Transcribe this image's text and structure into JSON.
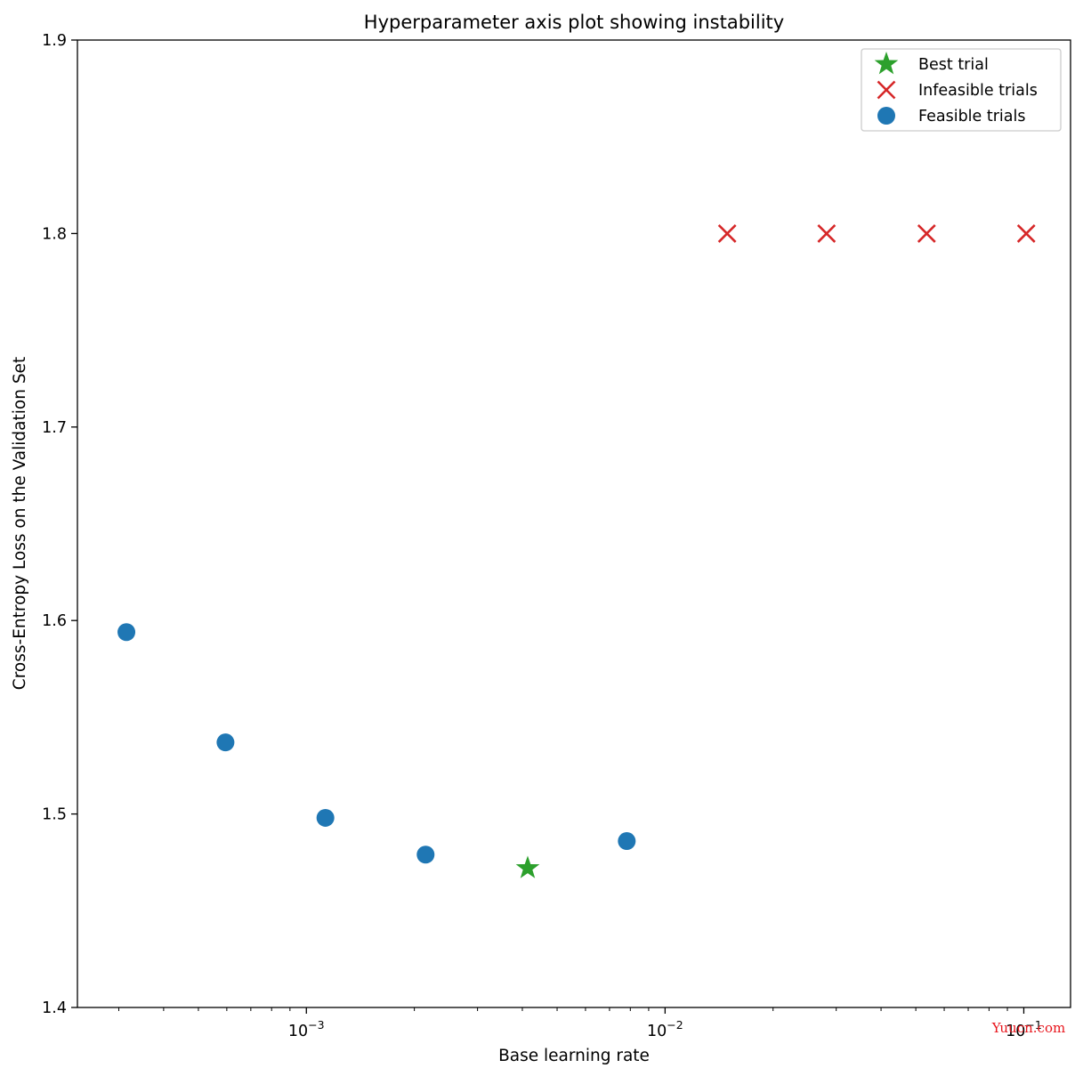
{
  "chart_data": {
    "type": "scatter",
    "title": "Hyperparameter axis plot showing instability",
    "xlabel": "Base learning rate",
    "ylabel": "Cross-Entropy Loss on the Validation Set",
    "xscale": "log",
    "xlim": [
      0.00023,
      0.135
    ],
    "ylim": [
      1.4,
      1.9
    ],
    "yticks": [
      "1.4",
      "1.5",
      "1.6",
      "1.7",
      "1.8",
      "1.9"
    ],
    "xticks": [
      {
        "value": 0.001,
        "base": "10",
        "exp": "−3"
      },
      {
        "value": 0.01,
        "base": "10",
        "exp": "−2"
      },
      {
        "value": 0.1,
        "base": "10",
        "exp": "−1"
      }
    ],
    "grid": false,
    "legend_position": "top-right",
    "series": [
      {
        "name": "Best trial",
        "marker": "star",
        "color": "#2ca02c",
        "x": [
          0.00414
        ],
        "y": [
          1.472
        ]
      },
      {
        "name": "Infeasible trials",
        "marker": "x",
        "color": "#d62728",
        "x": [
          0.0149,
          0.0282,
          0.0536,
          0.1016
        ],
        "y": [
          1.8,
          1.8,
          1.8,
          1.8
        ]
      },
      {
        "name": "Feasible trials",
        "marker": "circle",
        "color": "#1f77b4",
        "x": [
          0.000315,
          0.000595,
          0.00113,
          0.00215,
          0.00782
        ],
        "y": [
          1.594,
          1.537,
          1.498,
          1.479,
          1.486
        ]
      }
    ]
  },
  "watermark": "Yuucn.com"
}
